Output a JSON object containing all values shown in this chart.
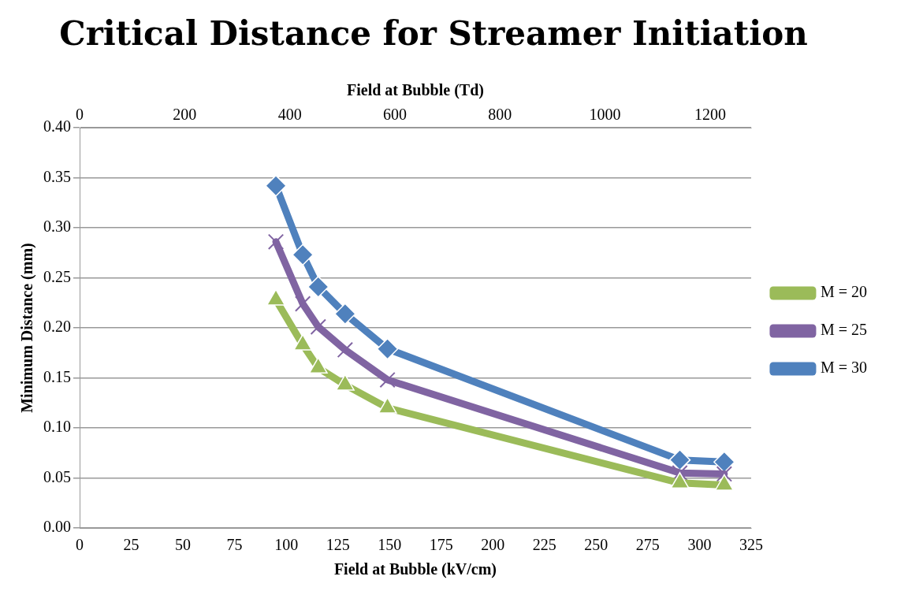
{
  "chart_data": {
    "type": "line",
    "title": "Critical Distance for Streamer Initiation",
    "xlabel": "Field at Bubble (kV/cm)",
    "x2label": "Field at Bubble (Td)",
    "ylabel": "Minimum Distance (mm)",
    "x": [
      95,
      108,
      115.5,
      128.5,
      149,
      290.5,
      312
    ],
    "xlim": [
      0,
      325
    ],
    "xticks": [
      0,
      25,
      50,
      75,
      100,
      125,
      150,
      175,
      200,
      225,
      250,
      275,
      300,
      325
    ],
    "x2lim": [
      0,
      1278
    ],
    "x2ticks": [
      0,
      200,
      400,
      600,
      800,
      1000,
      1200
    ],
    "ylim": [
      0,
      0.4
    ],
    "yticks": [
      {
        "value": 0,
        "label": "0.00"
      },
      {
        "value": 0.05,
        "label": "0.05"
      },
      {
        "value": 0.1,
        "label": "0.10"
      },
      {
        "value": 0.15,
        "label": "0.15"
      },
      {
        "value": 0.2,
        "label": "0.20"
      },
      {
        "value": 0.25,
        "label": "0.25"
      },
      {
        "value": 0.3,
        "label": "0.30"
      },
      {
        "value": 0.35,
        "label": "0.35"
      },
      {
        "value": 0.4,
        "label": "0.40"
      }
    ],
    "grid": "y",
    "legend": "right",
    "line_style": "solid",
    "series": [
      {
        "name": "M = 20",
        "color": "#9bbb59",
        "marker": "triangle",
        "values": [
          0.228,
          0.183,
          0.16,
          0.143,
          0.12,
          0.045,
          0.043
        ]
      },
      {
        "name": "M = 25",
        "color": "#8064a2",
        "marker": "cross",
        "values": [
          0.286,
          0.224,
          0.201,
          0.178,
          0.148,
          0.055,
          0.054
        ]
      },
      {
        "name": "M = 30",
        "color": "#4f81bd",
        "marker": "diamond",
        "values": [
          0.342,
          0.273,
          0.241,
          0.214,
          0.179,
          0.068,
          0.066
        ]
      }
    ]
  }
}
